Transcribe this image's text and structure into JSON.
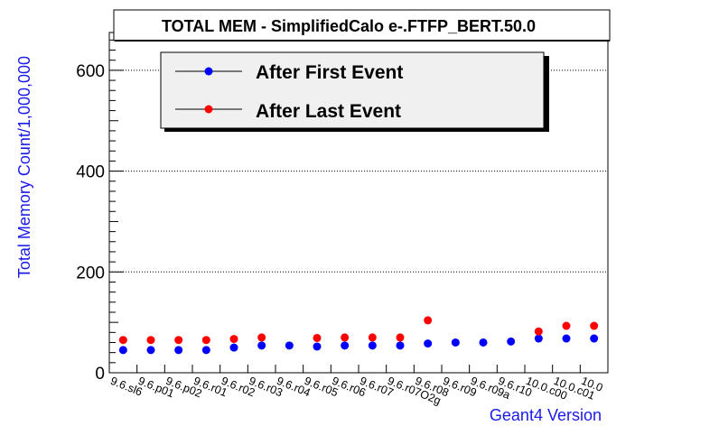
{
  "chart_data": {
    "type": "scatter",
    "title": "TOTAL MEM - SimplifiedCalo e-.FTFP_BERT.50.0",
    "xlabel": "Geant4 Version",
    "ylabel": "Total Memory Count/1,000,000",
    "ylim": [
      0,
      675
    ],
    "yticks": [
      "0",
      "200",
      "400",
      "600"
    ],
    "grid": true,
    "legend_position": "top-left",
    "categories": [
      "9.6.sl6",
      "9.6.p01",
      "9.6.p02",
      "9.6.r01",
      "9.6.r02",
      "9.6.r03",
      "9.6.r04",
      "9.6.r05",
      "9.6.r06",
      "9.6.r07",
      "9.6.r07O2g",
      "9.6.r08",
      "9.6.r09",
      "9.6.r09a",
      "9.6.r10",
      "10.0.c00",
      "10.0.c01",
      "10.0"
    ],
    "series": [
      {
        "name": "After First Event",
        "color": "#0000ff",
        "values": [
          45,
          45,
          45,
          45,
          50,
          54,
          54,
          52,
          54,
          54,
          54,
          58,
          60,
          60,
          62,
          68,
          68,
          68
        ]
      },
      {
        "name": "After Last Event",
        "color": "#ff0000",
        "values": [
          65,
          65,
          65,
          65,
          67,
          70,
          null,
          69,
          70,
          70,
          70,
          104,
          null,
          null,
          null,
          82,
          93,
          93
        ]
      }
    ]
  }
}
